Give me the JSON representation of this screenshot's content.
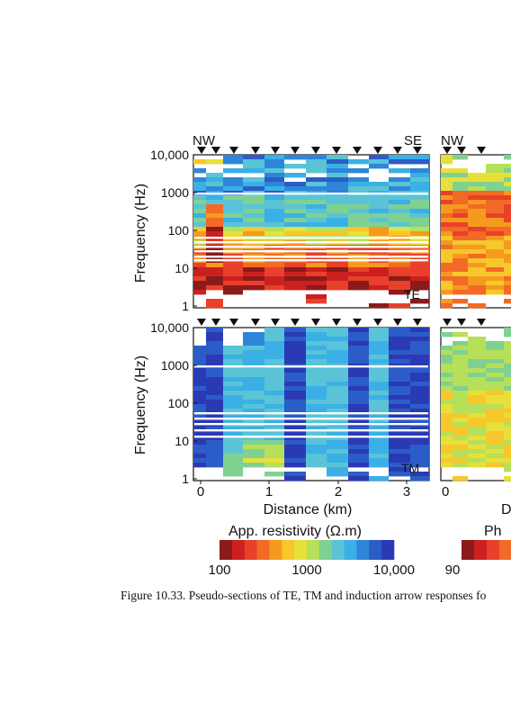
{
  "caption": "Figure 10.33.  Pseudo-sections of TE, TM and induction arrow responses fo",
  "y_axis_label": "Frequency (Hz)",
  "y_tick_labels": [
    "10,000",
    "1000",
    "100",
    "10",
    "1"
  ],
  "x_axis_label": "Distance (km)",
  "x_axis_label_right_partial": "D",
  "x_tick_labels": [
    "0",
    "1",
    "2",
    "3"
  ],
  "x_tick_label_right": "0",
  "direction_left": "NW",
  "direction_right": "SE",
  "direction_left_right_panel": "NW",
  "mode_labels": {
    "top": "TE",
    "bottom": "TM"
  },
  "resistivity_colorbar": {
    "title": "App.  resistivity (Ω.m)",
    "tick_labels": [
      "100",
      "1000",
      "10,000"
    ],
    "colors": [
      "#8b1a1a",
      "#cc2020",
      "#e8402a",
      "#f26a25",
      "#f69a1f",
      "#f7c72c",
      "#e7e03a",
      "#b6e05a",
      "#7fd191",
      "#5ac4d6",
      "#3ab0e6",
      "#2e86d8",
      "#2c5cc8",
      "#2a3ab4"
    ]
  },
  "phase_colorbar": {
    "title": "Ph",
    "tick_labels": [
      "90"
    ],
    "colors": [
      "#8b1a1a",
      "#cc2020",
      "#e8402a",
      "#f26a25"
    ]
  },
  "marker_count_left": 12,
  "marker_count_right": 3
}
